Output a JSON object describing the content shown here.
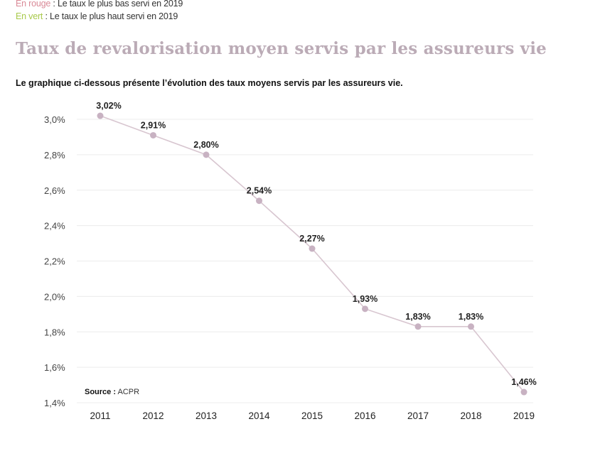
{
  "notes": [
    {
      "highlight": "En rouge",
      "text": " : Le taux le plus bas servi en 2019",
      "color": "#d98a97"
    },
    {
      "highlight": "En vert",
      "text": " : Le taux le plus haut servi en 2019",
      "color": "#a8c94a"
    }
  ],
  "source": {
    "label": "Source :",
    "value": " ACPR"
  },
  "chart_data": {
    "type": "line",
    "title": "Taux de revalorisation moyen servis par les assureurs vie",
    "subtitle": "Le graphique ci-dessous présente l’évolution des taux moyens servis par les assureurs vie.",
    "categories": [
      "2011",
      "2012",
      "2013",
      "2014",
      "2015",
      "2016",
      "2017",
      "2018",
      "2019"
    ],
    "values": [
      3.02,
      2.91,
      2.8,
      2.54,
      2.27,
      1.93,
      1.83,
      1.83,
      1.46
    ],
    "labels": [
      "3,02%",
      "2,91%",
      "2,80%",
      "2,54%",
      "2,27%",
      "1,93%",
      "1,83%",
      "1,83%",
      "1,46%"
    ],
    "yticks": [
      3.0,
      2.8,
      2.6,
      2.4,
      2.2,
      2.0,
      1.8,
      1.6,
      1.4
    ],
    "ytick_labels": [
      "3,0%",
      "2,8%",
      "2,6%",
      "2,4%",
      "2,2%",
      "2,0%",
      "1,8%",
      "1,6%",
      "1,4%"
    ],
    "ylim": [
      1.4,
      3.0
    ],
    "grid": true,
    "line_color": "#d8c6d0",
    "marker_color": "#c8b2c2"
  }
}
